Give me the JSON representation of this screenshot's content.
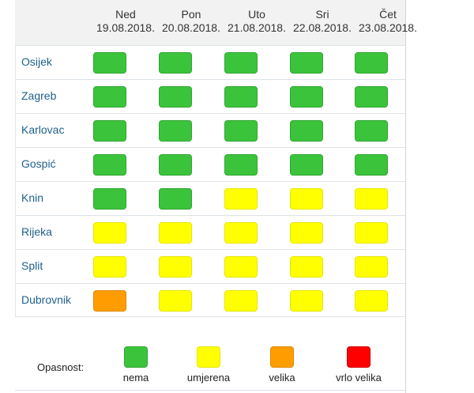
{
  "colors": {
    "nema": "#3bc43b",
    "umjerena": "#ffff00",
    "velika": "#ff9d00",
    "vrlo_velika": "#ff0000"
  },
  "header": {
    "days": [
      {
        "day": "Ned",
        "date": "19.08.2018."
      },
      {
        "day": "Pon",
        "date": "20.08.2018."
      },
      {
        "day": "Uto",
        "date": "21.08.2018."
      },
      {
        "day": "Sri",
        "date": "22.08.2018."
      },
      {
        "day": "Čet",
        "date": "23.08.2018."
      }
    ]
  },
  "rows": [
    {
      "city": "Osijek",
      "levels": [
        "nema",
        "nema",
        "nema",
        "nema",
        "nema"
      ]
    },
    {
      "city": "Zagreb",
      "levels": [
        "nema",
        "nema",
        "nema",
        "nema",
        "nema"
      ]
    },
    {
      "city": "Karlovac",
      "levels": [
        "nema",
        "nema",
        "nema",
        "nema",
        "nema"
      ]
    },
    {
      "city": "Gospić",
      "levels": [
        "nema",
        "nema",
        "nema",
        "nema",
        "nema"
      ]
    },
    {
      "city": "Knin",
      "levels": [
        "nema",
        "nema",
        "umjerena",
        "umjerena",
        "umjerena"
      ]
    },
    {
      "city": "Rijeka",
      "levels": [
        "umjerena",
        "umjerena",
        "umjerena",
        "umjerena",
        "umjerena"
      ]
    },
    {
      "city": "Split",
      "levels": [
        "umjerena",
        "umjerena",
        "umjerena",
        "umjerena",
        "umjerena"
      ]
    },
    {
      "city": "Dubrovnik",
      "levels": [
        "velika",
        "umjerena",
        "umjerena",
        "umjerena",
        "umjerena"
      ]
    }
  ],
  "legend": {
    "title": "Opasnost:",
    "items": [
      {
        "key": "nema",
        "label": "nema"
      },
      {
        "key": "umjerena",
        "label": "umjerena"
      },
      {
        "key": "velika",
        "label": "velika"
      },
      {
        "key": "vrlo_velika",
        "label": "vrlo velika"
      }
    ]
  }
}
